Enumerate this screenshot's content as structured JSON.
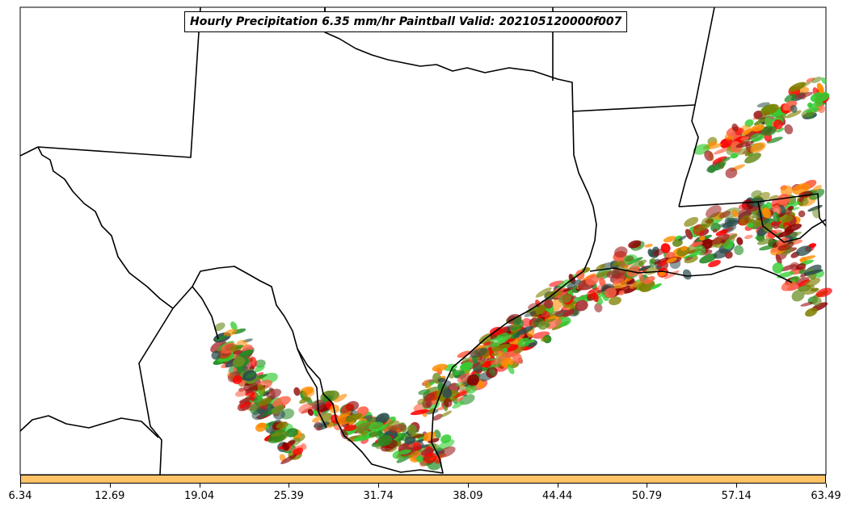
{
  "title": "Hourly Precipitation 6.35 mm/hr Paintball Valid: 202105120000f007",
  "colorbar": {
    "color": "#ffc266",
    "ticks": [
      "6.34",
      "12.69",
      "19.04",
      "25.39",
      "31.74",
      "38.09",
      "44.44",
      "50.79",
      "57.14",
      "63.49"
    ]
  },
  "map": {
    "region": "Texas and Gulf Coast",
    "boundary_color": "#000000",
    "precip_palette": [
      "#ff0000",
      "#ff8c00",
      "#228b22",
      "#32cd32",
      "#8b0000",
      "#a52a2a",
      "#6b8e23",
      "#808000",
      "#ff6347",
      "#2f4f4f"
    ]
  }
}
